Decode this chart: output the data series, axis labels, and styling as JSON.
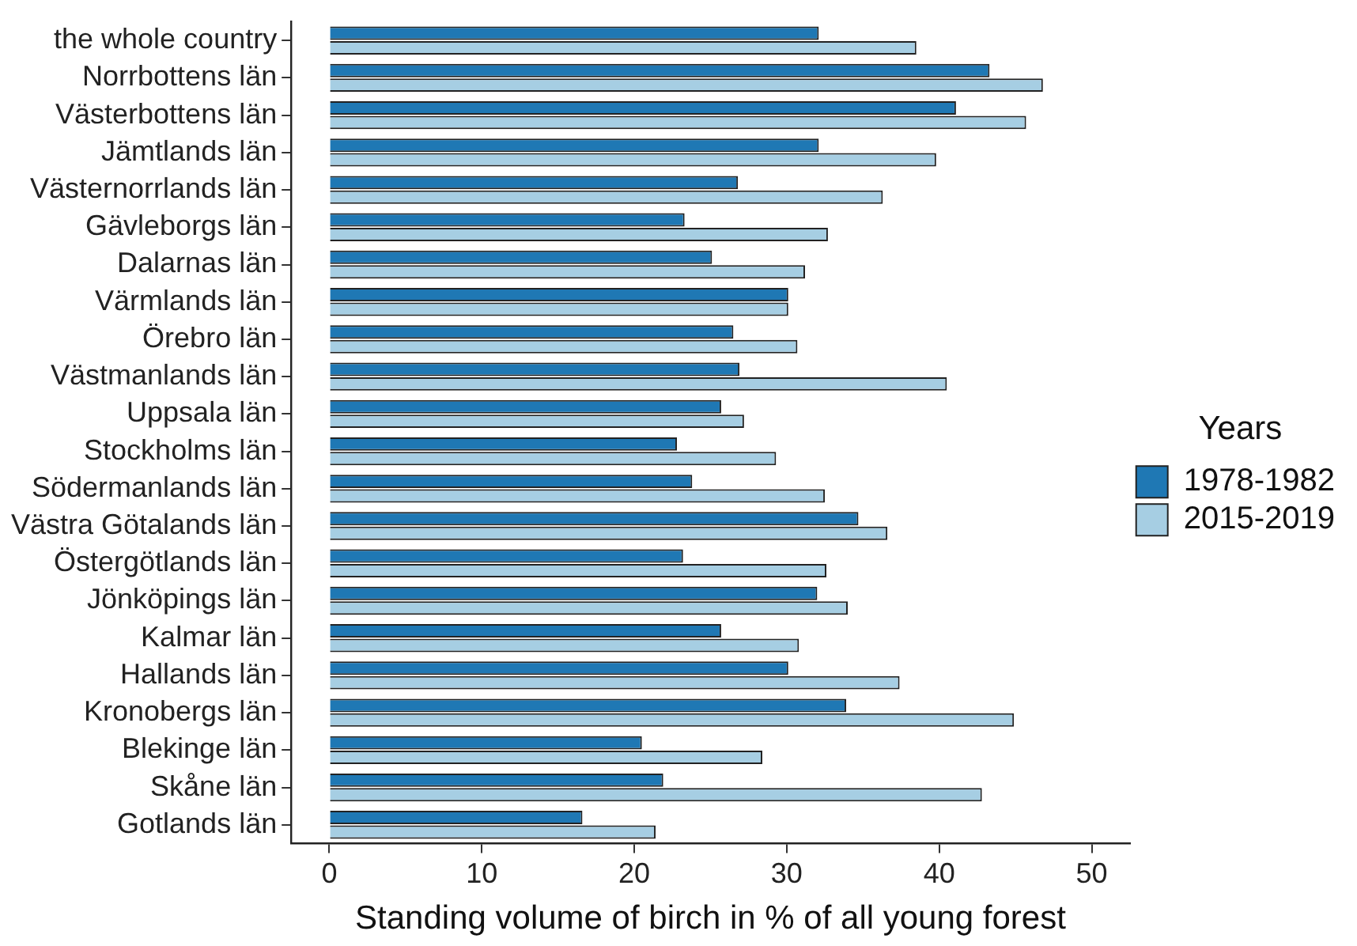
{
  "chart_data": {
    "type": "bar",
    "orientation": "horizontal",
    "xlabel": "Standing volume of birch in % of all young forest",
    "legend_title": "Years",
    "legend": "right",
    "grid": false,
    "categories": [
      "the whole country",
      "Norrbottens län",
      "Västerbottens län",
      "Jämtlands län",
      "Västernorrlands län",
      "Gävleborgs län",
      "Dalarnas län",
      "Värmlands län",
      "Örebro län",
      "Västmanlands län",
      "Uppsala län",
      "Stockholms län",
      "Södermanlands län",
      "Västra Götalands län",
      "Östergötlands län",
      "Jönköpings län",
      "Kalmar län",
      "Hallands län",
      "Kronobergs län",
      "Blekinge län",
      "Skåne län",
      "Gotlands län"
    ],
    "series": [
      {
        "name": "1978-1982",
        "color": "#1f78b4",
        "values": [
          32.1,
          43.3,
          41.1,
          32.1,
          26.8,
          23.3,
          25.1,
          30.1,
          26.5,
          26.9,
          25.7,
          22.8,
          23.8,
          34.7,
          23.2,
          32.0,
          25.7,
          30.1,
          33.9,
          20.5,
          21.9,
          16.6
        ]
      },
      {
        "name": "2015-2019",
        "color": "#a6cee3",
        "values": [
          38.5,
          46.8,
          45.7,
          39.8,
          36.3,
          32.7,
          31.2,
          30.1,
          30.7,
          40.5,
          27.2,
          29.3,
          32.5,
          36.6,
          32.6,
          34.0,
          30.8,
          37.4,
          44.9,
          28.4,
          42.8,
          21.4
        ]
      }
    ],
    "xlim": [
      -2.5,
      52.5
    ],
    "xticks": [
      0,
      10,
      20,
      30,
      40,
      50
    ]
  }
}
